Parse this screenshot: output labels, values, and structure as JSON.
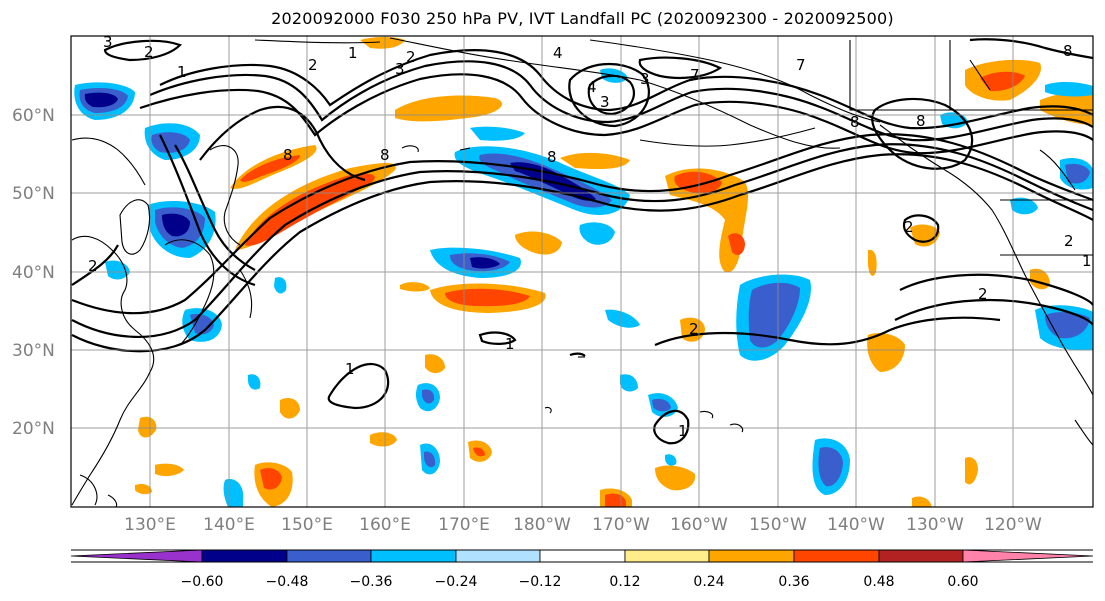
{
  "title": "2020092000 F030 250 hPa PV, IVT Landfall PC (2020092300 - 2020092500)",
  "latitude_labels": [
    "60°N",
    "50°N",
    "40°N",
    "30°N",
    "20°N"
  ],
  "longitude_labels": [
    "130°E",
    "140°E",
    "150°E",
    "160°E",
    "170°E",
    "180°W",
    "170°W",
    "160°W",
    "150°W",
    "140°W",
    "130°W",
    "120°W"
  ],
  "contour_labels": [
    "3",
    "2",
    "1",
    "2",
    "1",
    "3",
    "2",
    "4",
    "3",
    "4",
    "3",
    "7",
    "8",
    "8",
    "8",
    "8",
    "8",
    "7",
    "8",
    "2",
    "2",
    "2",
    "2",
    "1",
    "1",
    "2",
    "1",
    "1"
  ],
  "colorbar": {
    "tick_labels": [
      "−0.60",
      "−0.48",
      "−0.36",
      "−0.24",
      "−0.12",
      "0.12",
      "0.24",
      "0.36",
      "0.48",
      "0.60"
    ],
    "colors": [
      "#9932cc",
      "#00008b",
      "#3a5fcd",
      "#00bfff",
      "#b0e2ff",
      "#ffffff",
      "#ffec8b",
      "#ffa500",
      "#ff4500",
      "#b22222",
      "#ff82ab"
    ]
  }
}
